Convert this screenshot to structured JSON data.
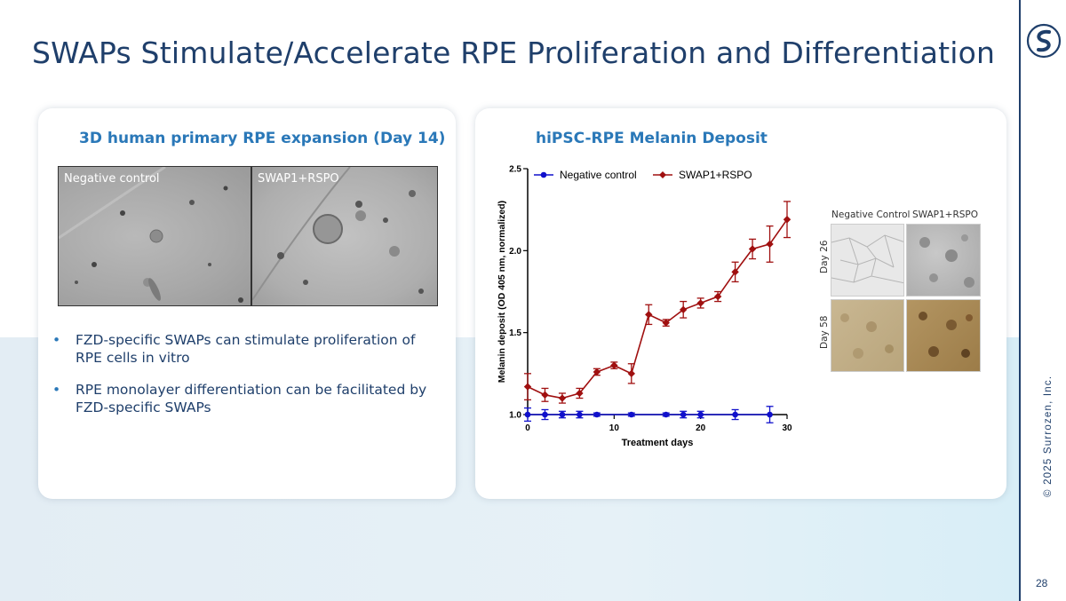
{
  "page": {
    "title": "SWAPs Stimulate/Accelerate RPE Proliferation and Differentiation",
    "copyright": "© 2025 Surrozen, Inc.",
    "page_number": "28",
    "colors": {
      "navy": "#1f3f6b",
      "accent_blue": "#2a78b8"
    }
  },
  "left_panel": {
    "title": "3D human primary RPE expansion (Day 14)",
    "image_labels": [
      "Negative control",
      "SWAP1+RSPO"
    ],
    "bullets": [
      "FZD-specific SWAPs can stimulate proliferation of RPE cells in vitro",
      "RPE monolayer differentiation can be facilitated by FZD-specific SWAPs"
    ]
  },
  "right_panel": {
    "title": "hiPSC-RPE Melanin Deposit",
    "inset": {
      "col_labels": [
        "Negative Control",
        "SWAP1+RSPO"
      ],
      "row_labels": [
        "Day 26",
        "Day 58"
      ]
    }
  },
  "chart_data": {
    "type": "line",
    "title": "",
    "xlabel": "Treatment days",
    "ylabel": "Melanin deposit (OD 405 nm, normalized)",
    "xlim": [
      0,
      30
    ],
    "ylim": [
      1.0,
      2.5
    ],
    "xticks": [
      0,
      10,
      20,
      30
    ],
    "yticks": [
      "1.0",
      "1.5",
      "2.0",
      "2.5"
    ],
    "legend_position": "top",
    "series": [
      {
        "name": "Negative control",
        "color": "#1010cc",
        "marker": "circle",
        "x": [
          0,
          2,
          4,
          6,
          8,
          12,
          16,
          18,
          20,
          24,
          28
        ],
        "y": [
          1.0,
          1.0,
          1.0,
          1.0,
          1.0,
          1.0,
          1.0,
          1.0,
          1.0,
          1.0,
          1.0
        ],
        "err": [
          0.04,
          0.03,
          0.02,
          0.02,
          0.01,
          0.01,
          0.01,
          0.02,
          0.02,
          0.03,
          0.05
        ]
      },
      {
        "name": "SWAP1+RSPO",
        "color": "#a01010",
        "marker": "diamond",
        "x": [
          0,
          2,
          4,
          6,
          8,
          10,
          12,
          14,
          16,
          18,
          20,
          22,
          24,
          26,
          28,
          30
        ],
        "y": [
          1.17,
          1.12,
          1.1,
          1.13,
          1.26,
          1.3,
          1.25,
          1.61,
          1.56,
          1.64,
          1.68,
          1.72,
          1.87,
          2.01,
          2.04,
          2.19
        ],
        "err": [
          0.08,
          0.04,
          0.03,
          0.03,
          0.02,
          0.02,
          0.06,
          0.06,
          0.02,
          0.05,
          0.03,
          0.03,
          0.06,
          0.06,
          0.11,
          0.11
        ]
      }
    ]
  }
}
